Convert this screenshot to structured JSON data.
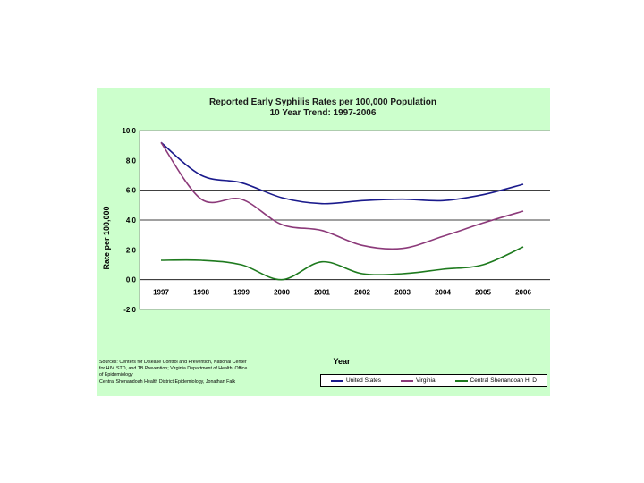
{
  "chart_data": {
    "type": "line",
    "title": "Reported Early Syphilis Rates per 100,000 Population",
    "subtitle": "10 Year Trend: 1997-2006",
    "xlabel": "Year",
    "ylabel": "Rate per 100,000",
    "categories": [
      "1997",
      "1998",
      "1999",
      "2000",
      "2001",
      "2002",
      "2003",
      "2004",
      "2005",
      "2006"
    ],
    "yticks": [
      "10.0",
      "8.0",
      "6.0",
      "4.0",
      "2.0",
      "0.0",
      "-2.0"
    ],
    "ylim": [
      -2.0,
      10.0
    ],
    "series": [
      {
        "name": "United States",
        "color": "#1a1a8c",
        "values": [
          9.2,
          7.0,
          6.5,
          5.5,
          5.1,
          5.3,
          5.4,
          5.3,
          5.7,
          6.4
        ]
      },
      {
        "name": "Virginia",
        "color": "#8c3a7a",
        "values": [
          9.2,
          5.4,
          5.4,
          3.7,
          3.3,
          2.3,
          2.1,
          2.9,
          3.8,
          4.6
        ]
      },
      {
        "name": "Central Shenandoah H. D",
        "color": "#1e7a1e",
        "values": [
          1.3,
          1.3,
          1.0,
          0.0,
          1.2,
          0.4,
          0.4,
          0.7,
          1.0,
          2.2
        ]
      }
    ]
  },
  "sources": {
    "lines": [
      "Sources: Centers for Disease Control and Prevention, National Center",
      "for HIV, STD, and TB Prevention; Virginia Department of Health, Office",
      "of Epidemiology",
      "Central Shenandoah Health District Epidemiology, Jonathan Falk"
    ]
  }
}
